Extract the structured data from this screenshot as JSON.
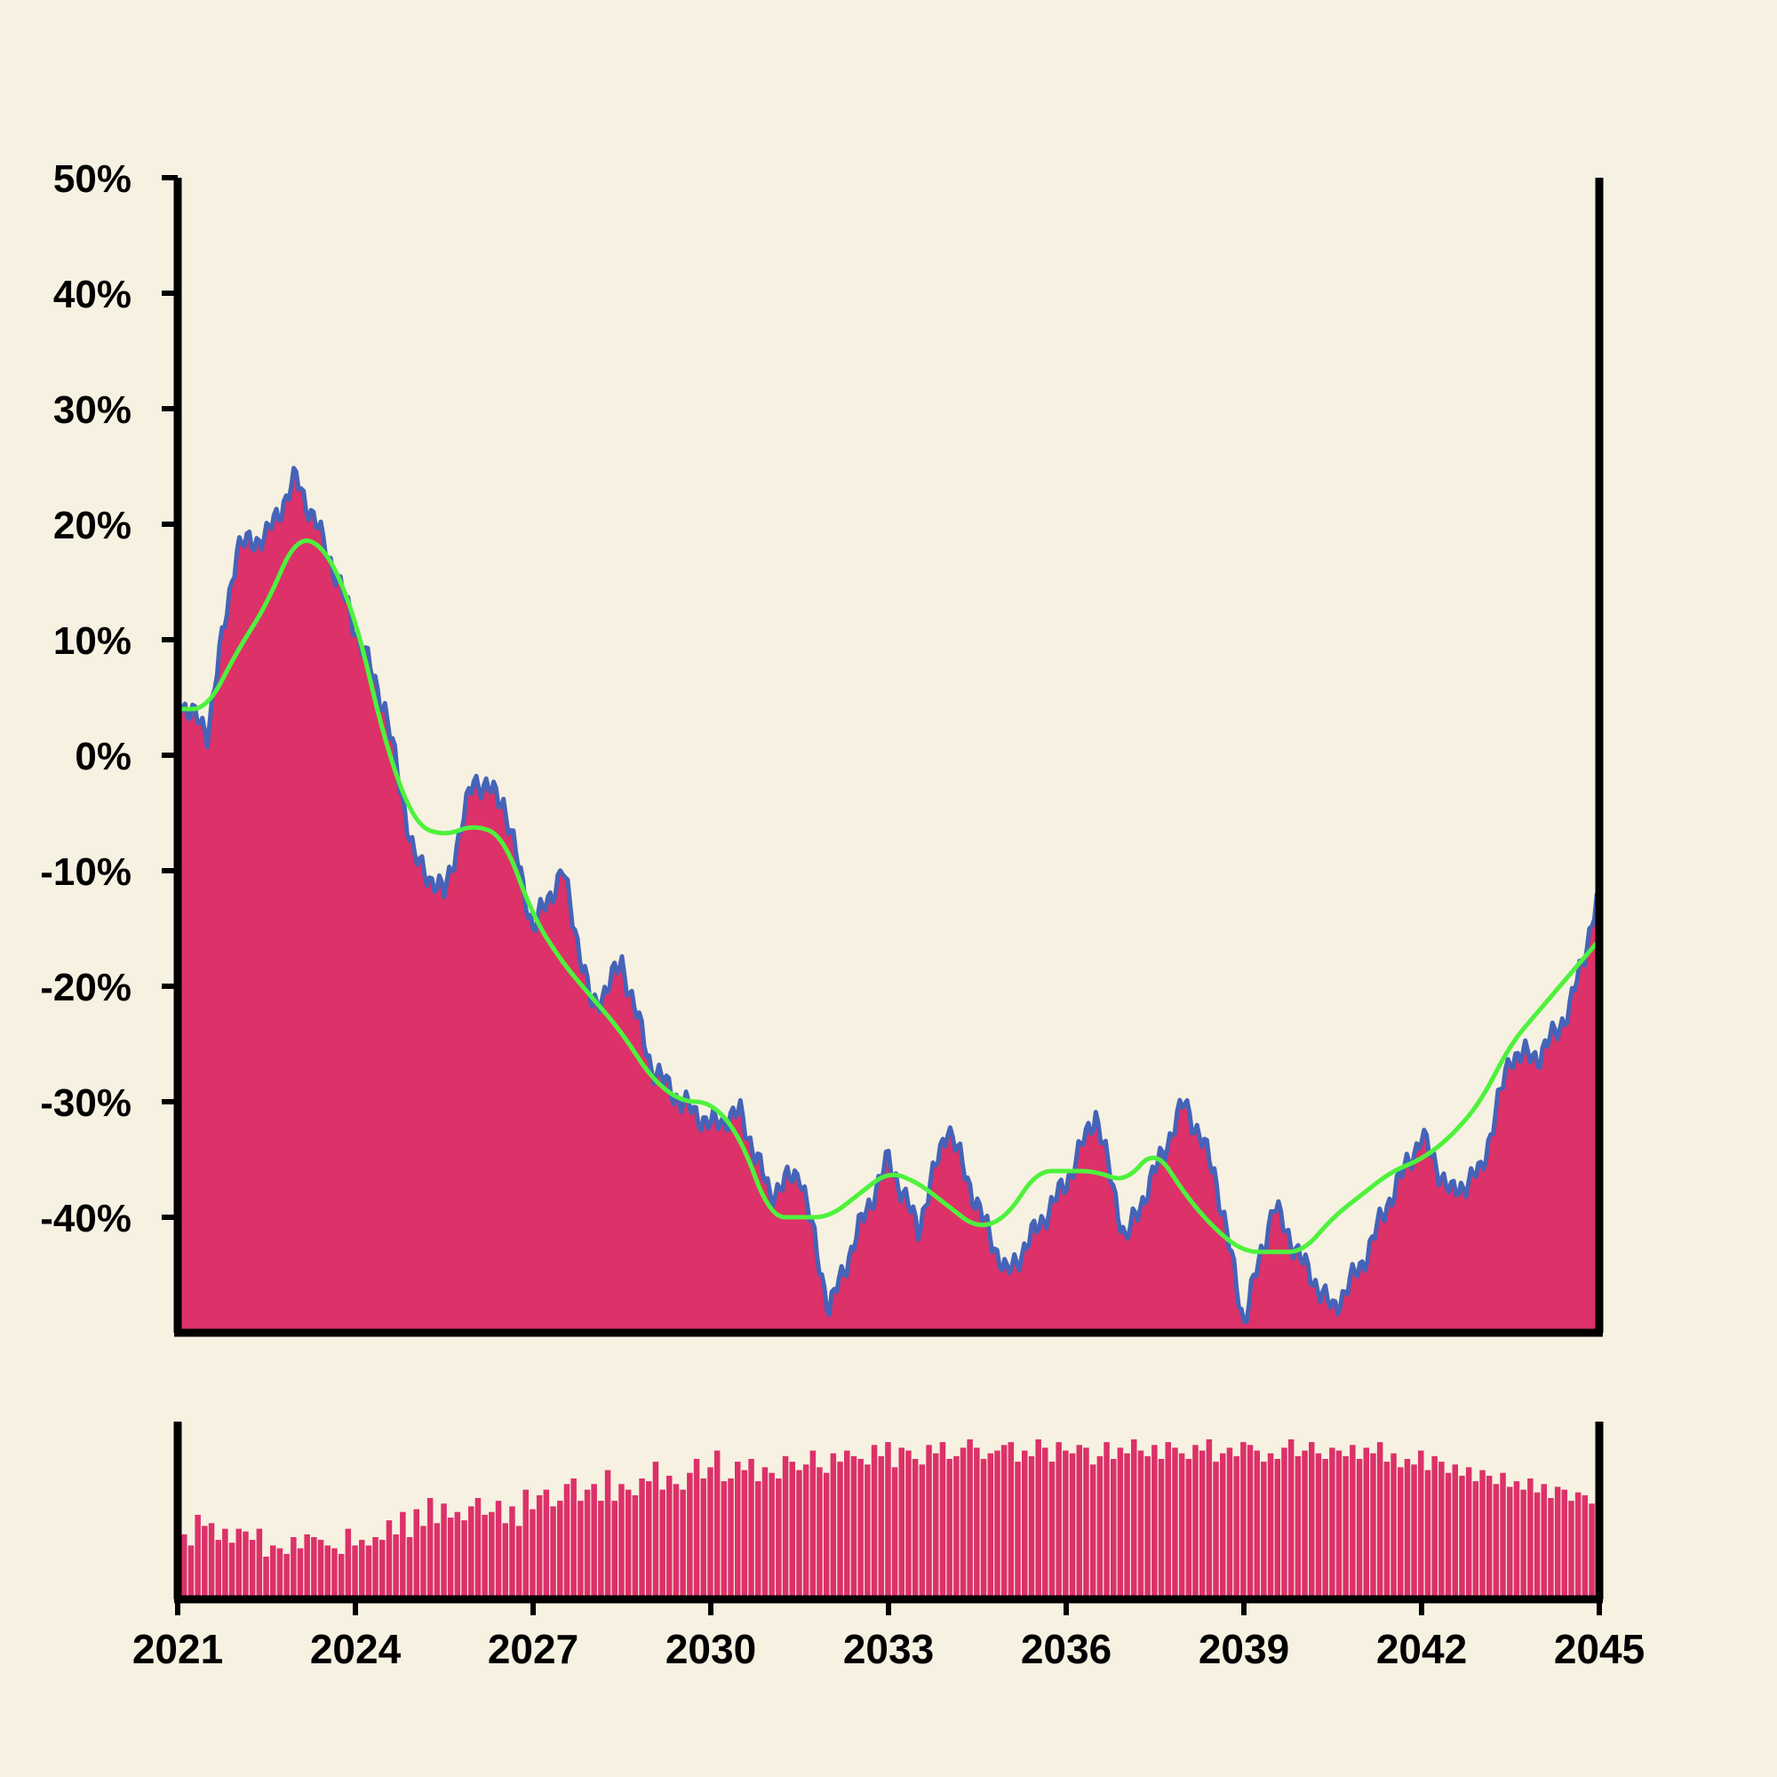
{
  "colors": {
    "background": "#f6f1e1",
    "area_fill": "#dc3169",
    "price_line": "#4563b8",
    "moving_average": "#4ef23c",
    "volume": "#dc3169",
    "axis": "#000000"
  },
  "chart_data": [
    {
      "type": "area",
      "title": "",
      "xlabel": "",
      "ylabel": "",
      "x_range": [
        "2021-01",
        "2045-01"
      ],
      "ylim": [
        -50,
        50
      ],
      "y_ticks": [
        -40,
        -30,
        -20,
        -10,
        0,
        10,
        20,
        30,
        40,
        50
      ],
      "y_tick_labels": [
        "-40%",
        "-30%",
        "-20%",
        "-10%",
        "0%",
        "10%",
        "20%",
        "30%",
        "40%",
        "50%"
      ],
      "grid": false,
      "series": [
        {
          "key": "price",
          "x": [
            "2021-01",
            "2021-07",
            "2022-01",
            "2022-07",
            "2023-01",
            "2023-07",
            "2024-01",
            "2024-07",
            "2025-01",
            "2025-07",
            "2026-01",
            "2026-07",
            "2027-01",
            "2027-07",
            "2028-01",
            "2028-07",
            "2029-01",
            "2029-07",
            "2030-01",
            "2030-07",
            "2031-01",
            "2031-07",
            "2032-01",
            "2032-07",
            "2033-01",
            "2033-07",
            "2034-01",
            "2034-07",
            "2035-01",
            "2035-07",
            "2036-01",
            "2036-07",
            "2037-01",
            "2037-07",
            "2038-01",
            "2038-07",
            "2039-01",
            "2039-07",
            "2040-01",
            "2040-07",
            "2041-01",
            "2041-07",
            "2042-01",
            "2042-07",
            "2043-01",
            "2043-07",
            "2044-01",
            "2044-07",
            "2045-01"
          ],
          "values": [
            5,
            2,
            18,
            19,
            24,
            18,
            11,
            4,
            -9,
            -12,
            -2,
            -4,
            -15,
            -10,
            -22,
            -18,
            -27,
            -30,
            -32,
            -31,
            -38,
            -36,
            -48,
            -41,
            -35,
            -41,
            -32,
            -39,
            -45,
            -41,
            -37,
            -31,
            -42,
            -36,
            -30,
            -36,
            -49,
            -39,
            -44,
            -48,
            -44,
            -38,
            -33,
            -38,
            -36,
            -26,
            -26,
            -22,
            -12
          ]
        },
        {
          "key": "moving_average",
          "x": [
            "2021-01",
            "2021-07",
            "2022-01",
            "2022-07",
            "2023-01",
            "2023-07",
            "2024-01",
            "2024-07",
            "2025-01",
            "2025-07",
            "2026-01",
            "2026-07",
            "2027-01",
            "2027-07",
            "2028-01",
            "2028-07",
            "2029-01",
            "2029-07",
            "2030-01",
            "2030-07",
            "2031-01",
            "2031-07",
            "2032-01",
            "2032-07",
            "2033-01",
            "2033-07",
            "2034-01",
            "2034-07",
            "2035-01",
            "2035-07",
            "2036-01",
            "2036-07",
            "2037-01",
            "2037-07",
            "2038-01",
            "2038-07",
            "2039-01",
            "2039-07",
            "2040-01",
            "2040-07",
            "2041-01",
            "2041-07",
            "2042-01",
            "2042-07",
            "2043-01",
            "2043-07",
            "2044-01",
            "2044-07",
            "2045-01"
          ],
          "values": [
            4,
            4,
            9,
            13,
            19,
            18,
            12,
            1,
            -6,
            -7,
            -6,
            -7,
            -14,
            -18,
            -21,
            -24,
            -28,
            -30,
            -30,
            -33,
            -40,
            -40,
            -40,
            -38,
            -36,
            -37,
            -39,
            -41,
            -40,
            -36,
            -36,
            -36,
            -37,
            -34,
            -38,
            -41,
            -43,
            -43,
            -43,
            -40,
            -38,
            -36,
            -35,
            -33,
            -30,
            -25,
            -22,
            -19,
            -16
          ]
        }
      ]
    },
    {
      "type": "bar",
      "title": "",
      "xlabel": "",
      "ylabel": "",
      "x_tick_labels": [
        "2021",
        "2024",
        "2027",
        "2030",
        "2033",
        "2036",
        "2039",
        "2042",
        "2045"
      ],
      "note_values_are_relative_volume": true,
      "values": [
        22,
        18,
        29,
        25,
        26,
        20,
        24,
        19,
        24,
        23,
        20,
        24,
        14,
        18,
        17,
        15,
        21,
        17,
        22,
        21,
        20,
        18,
        17,
        15,
        24,
        18,
        20,
        18,
        21,
        20,
        27,
        22,
        30,
        21,
        31,
        25,
        35,
        26,
        33,
        28,
        30,
        27,
        32,
        35,
        29,
        30,
        34,
        26,
        32,
        25,
        38,
        31,
        36,
        38,
        32,
        34,
        40,
        42,
        34,
        38,
        40,
        34,
        45,
        34,
        40,
        38,
        36,
        42,
        41,
        48,
        38,
        43,
        40,
        38,
        44,
        49,
        42,
        46,
        52,
        41,
        42,
        48,
        45,
        49,
        41,
        46,
        44,
        42,
        50,
        48,
        45,
        47,
        52,
        46,
        44,
        51,
        48,
        52,
        50,
        49,
        47,
        54,
        50,
        55,
        46,
        53,
        52,
        49,
        47,
        54,
        51,
        55,
        49,
        50,
        53,
        56,
        53,
        49,
        51,
        52,
        54,
        55,
        48,
        52,
        50,
        56,
        53,
        48,
        55,
        52,
        51,
        54,
        53,
        47,
        50,
        55,
        49,
        53,
        51,
        56,
        52,
        50,
        54,
        49,
        55,
        53,
        51,
        49,
        54,
        52,
        56,
        48,
        51,
        53,
        50,
        55,
        54,
        52,
        48,
        51,
        49,
        53,
        56,
        50,
        52,
        55,
        51,
        49,
        53,
        52,
        50,
        54,
        49,
        53,
        51,
        55,
        48,
        51,
        46,
        49,
        47,
        52,
        45,
        50,
        48,
        44,
        47,
        43,
        46,
        41,
        45,
        43,
        40,
        44,
        39,
        41,
        38,
        42,
        37,
        40,
        35,
        39,
        38,
        34,
        37,
        36,
        33
      ]
    }
  ]
}
